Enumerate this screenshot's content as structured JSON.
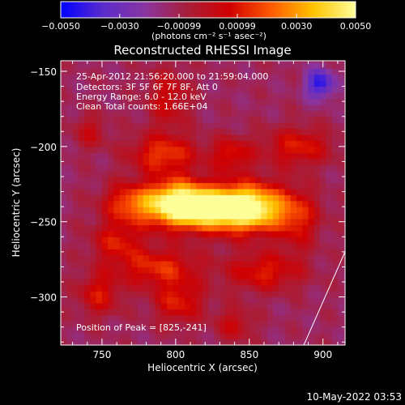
{
  "colorbar": {
    "tick_labels": [
      "−0.0050",
      "−0.0030",
      "−0.00099",
      "0.00099",
      "0.0030",
      "0.0050"
    ],
    "tick_values": [
      -0.005,
      -0.003,
      -0.00099,
      0.00099,
      0.003,
      0.005
    ],
    "range": [
      -0.005,
      0.005
    ],
    "units_label": "(photons cm⁻² s⁻¹ asec⁻²)",
    "gradient_colors": [
      "#0000ff",
      "#5a2bcc",
      "#8a35a0",
      "#a81e3a",
      "#d00000",
      "#ff5a00",
      "#ffc400",
      "#ffff9a"
    ]
  },
  "chart_data": {
    "type": "heatmap",
    "title": "Reconstructed RHESSI Image",
    "xlabel": "Heliocentric X (arcsec)",
    "ylabel": "Heliocentric Y (arcsec)",
    "xlim": [
      722,
      915
    ],
    "ylim": [
      -332,
      -143
    ],
    "x_ticks": [
      750,
      800,
      850,
      900
    ],
    "y_ticks": [
      -150,
      -200,
      -250,
      -300
    ],
    "x_tick_labels": [
      "750",
      "800",
      "850",
      "900"
    ],
    "y_tick_labels": [
      "−150",
      "−200",
      "−250",
      "−300"
    ],
    "annotations": [
      "25-Apr-2012 21:56:20.000 to 21:59:04.000",
      "Detectors: 3F 5F 6F 7F 8F, Att 0",
      "Energy Range: 6.0 - 12.0 keV",
      "Clean     Total counts: 1.66E+04"
    ],
    "peak_label": "Position of Peak = [825,-241]",
    "peak": [
      825,
      -241
    ],
    "limb_line": [
      [
        887,
        -332
      ],
      [
        915,
        -270
      ]
    ],
    "background_value": -0.0012,
    "sources": [
      {
        "x": 825,
        "y": -241,
        "sx": 30,
        "sy": 10,
        "amp": 0.0065
      },
      {
        "x": 800,
        "y": -235,
        "sx": 14,
        "sy": 10,
        "amp": 0.0035
      },
      {
        "x": 852,
        "y": -240,
        "sx": 16,
        "sy": 12,
        "amp": 0.003
      },
      {
        "x": 792,
        "y": -205,
        "sx": 16,
        "sy": 9,
        "amp": 0.0028
      },
      {
        "x": 768,
        "y": -237,
        "sx": 12,
        "sy": 9,
        "amp": 0.0023
      },
      {
        "x": 838,
        "y": -205,
        "sx": 10,
        "sy": 8,
        "amp": 0.0022
      },
      {
        "x": 883,
        "y": -200,
        "sx": 16,
        "sy": 9,
        "amp": 0.0023
      },
      {
        "x": 760,
        "y": -263,
        "sx": 12,
        "sy": 9,
        "amp": 0.0021
      },
      {
        "x": 788,
        "y": -280,
        "sx": 20,
        "sy": 9,
        "amp": 0.0025
      },
      {
        "x": 860,
        "y": -283,
        "sx": 18,
        "sy": 9,
        "amp": 0.0023
      },
      {
        "x": 802,
        "y": -303,
        "sx": 12,
        "sy": 10,
        "amp": 0.0023
      },
      {
        "x": 748,
        "y": -298,
        "sx": 10,
        "sy": 10,
        "amp": 0.0021
      },
      {
        "x": 883,
        "y": -250,
        "sx": 10,
        "sy": 14,
        "amp": 0.0018
      },
      {
        "x": 795,
        "y": -168,
        "sx": 10,
        "sy": 14,
        "amp": 0.0018
      },
      {
        "x": 742,
        "y": -190,
        "sx": 8,
        "sy": 8,
        "amp": 0.0014
      },
      {
        "x": 898,
        "y": -158,
        "sx": 7,
        "sy": 7,
        "amp": -0.0032
      },
      {
        "x": 840,
        "y": -318,
        "sx": 9,
        "sy": 8,
        "amp": 0.0016
      }
    ]
  },
  "footer": {
    "timestamp": "10-May-2022 03:53"
  }
}
